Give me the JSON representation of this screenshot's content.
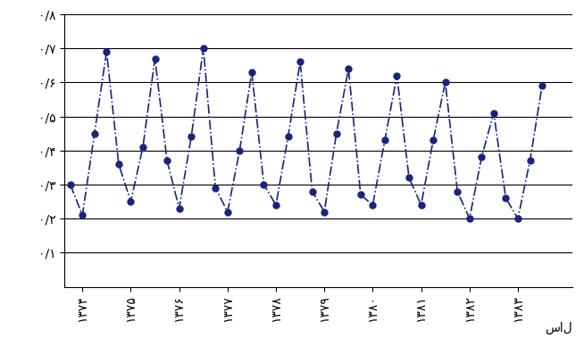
{
  "chart_data": {
    "type": "line",
    "x_label": "سال",
    "categories": [
      null,
      "۱۳۷۴",
      null,
      null,
      null,
      "۱۳۷۵",
      null,
      null,
      null,
      "۱۳۷۶",
      null,
      null,
      null,
      "۱۳۷۷",
      null,
      null,
      null,
      "۱۳۷۸",
      null,
      null,
      null,
      "۱۳۷۹",
      null,
      null,
      null,
      "۱۳۸۰",
      null,
      null,
      null,
      "۱۳۸۱",
      null,
      null,
      null,
      "۱۳۸۲",
      null,
      null,
      null,
      "۱۳۸۳",
      null,
      null
    ],
    "values": [
      0.3,
      0.21,
      0.45,
      0.69,
      0.36,
      0.25,
      0.41,
      0.67,
      0.37,
      0.23,
      0.44,
      0.7,
      0.29,
      0.22,
      0.4,
      0.63,
      0.3,
      0.24,
      0.44,
      0.66,
      0.28,
      0.22,
      0.45,
      0.64,
      0.27,
      0.24,
      0.43,
      0.62,
      0.32,
      0.24,
      0.43,
      0.6,
      0.28,
      0.2,
      0.38,
      0.51,
      0.26,
      0.2,
      0.37,
      0.59
    ],
    "color": "#1a237e",
    "marker": "o",
    "line_style": "dashdot",
    "ylim": [
      0,
      0.8
    ],
    "yticks": [
      {
        "value": 0.1,
        "label": "۰/۱"
      },
      {
        "value": 0.2,
        "label": "۰/۲"
      },
      {
        "value": 0.3,
        "label": "۰/۳"
      },
      {
        "value": 0.4,
        "label": "۰/۴"
      },
      {
        "value": 0.5,
        "label": "۰/۵"
      },
      {
        "value": 0.6,
        "label": "۰/۶"
      },
      {
        "value": 0.7,
        "label": "۰/۷"
      },
      {
        "value": 0.8,
        "label": "۰/۸"
      }
    ],
    "grid": true
  }
}
